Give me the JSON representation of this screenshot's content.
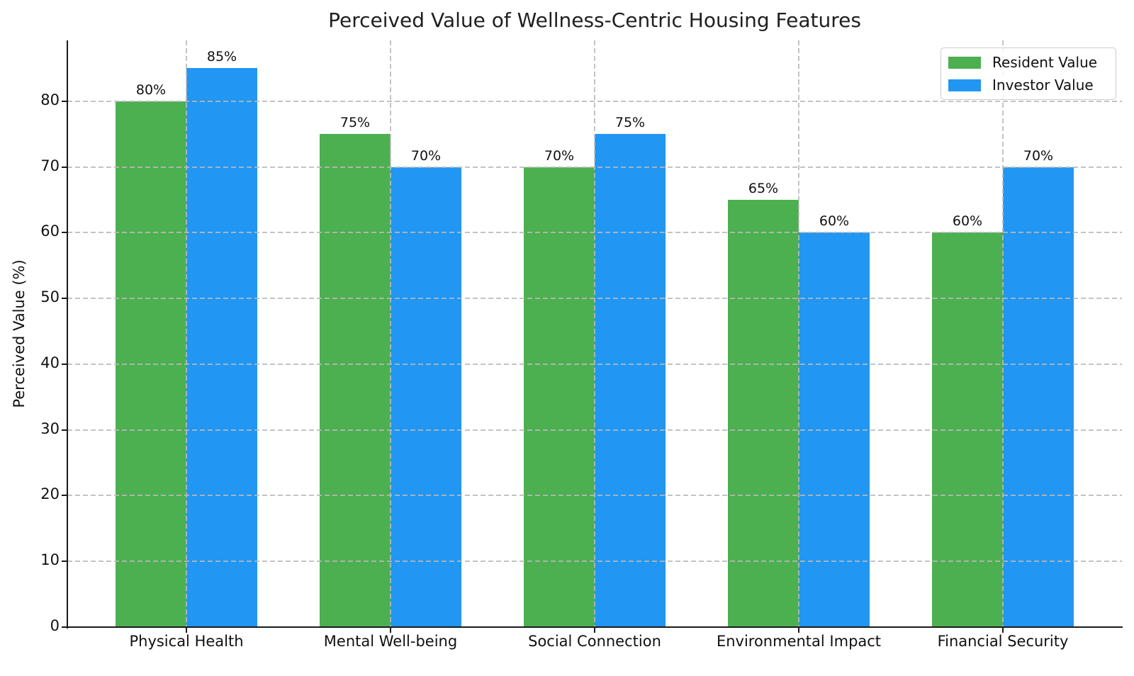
{
  "chart_data": {
    "type": "bar",
    "title": "Perceived Value of Wellness-Centric Housing Features",
    "xlabel": "",
    "ylabel": "Perceived Value (%)",
    "categories": [
      "Physical Health",
      "Mental Well-being",
      "Social Connection",
      "Environmental Impact",
      "Financial Security"
    ],
    "series": [
      {
        "name": "Resident Value",
        "color": "#4CAF50",
        "values": [
          80,
          75,
          70,
          65,
          60
        ],
        "labels": [
          "80%",
          "75%",
          "70%",
          "65%",
          "60%"
        ]
      },
      {
        "name": "Investor Value",
        "color": "#2196F3",
        "values": [
          85,
          70,
          75,
          60,
          70
        ],
        "labels": [
          "85%",
          "70%",
          "75%",
          "60%",
          "70%"
        ]
      }
    ],
    "yticks": [
      "0",
      "10",
      "20",
      "30",
      "40",
      "50",
      "60",
      "70",
      "80"
    ],
    "ytick_values": [
      0,
      10,
      20,
      30,
      40,
      50,
      60,
      70,
      80
    ],
    "ylim": [
      0,
      89.25
    ],
    "grid": "dashed, both axes, drawn over bars",
    "legend_position": "upper right"
  }
}
